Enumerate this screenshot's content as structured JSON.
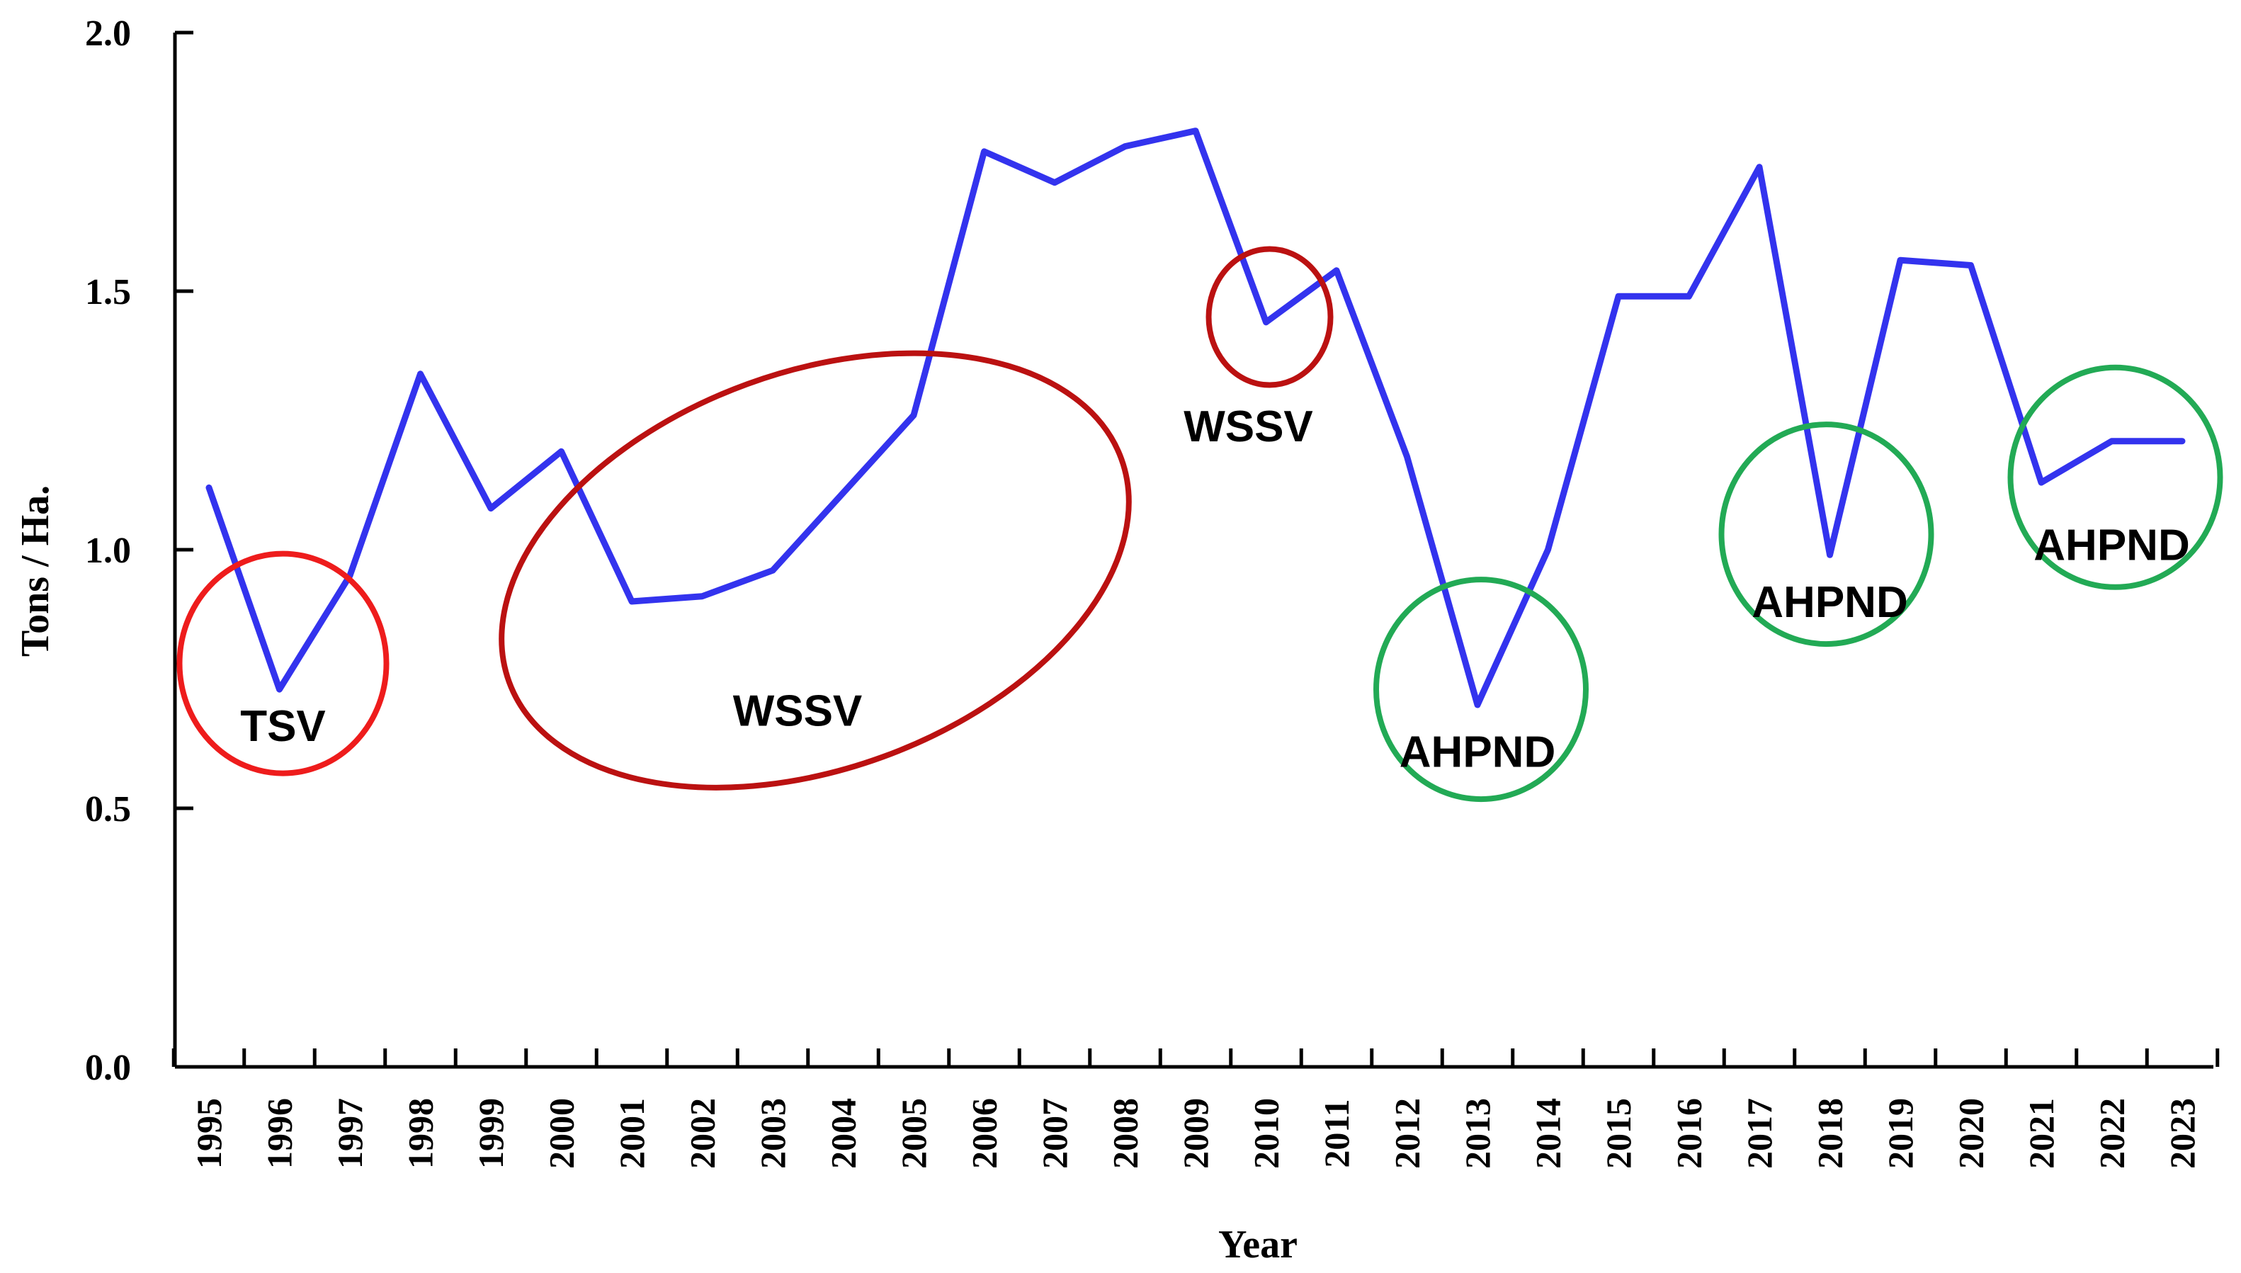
{
  "chart_data": {
    "type": "line",
    "xlabel": "Year",
    "ylabel": "Tons / Ha.",
    "ylim": [
      0,
      2.0
    ],
    "yticks": [
      "0.0",
      "0.5",
      "1.0",
      "1.5",
      "2.0"
    ],
    "grid": false,
    "legend": "none",
    "line_color": "#3333ee",
    "x": [
      "1995",
      "1996",
      "1997",
      "1998",
      "1999",
      "2000",
      "2001",
      "2002",
      "2003",
      "2004",
      "2005",
      "2006",
      "2007",
      "2008",
      "2009",
      "2010",
      "2011",
      "2012",
      "2013",
      "2014",
      "2015",
      "2016",
      "2017",
      "2018",
      "2019",
      "2020",
      "2021",
      "2022",
      "2023"
    ],
    "series": [
      {
        "values": [
          1.12,
          0.73,
          0.95,
          1.34,
          1.08,
          1.19,
          0.9,
          0.91,
          0.96,
          1.11,
          1.26,
          1.77,
          1.71,
          1.78,
          1.81,
          1.44,
          1.54,
          1.18,
          0.7,
          1.0,
          1.49,
          1.49,
          1.74,
          0.99,
          1.56,
          1.55,
          1.13,
          1.21,
          1.21
        ]
      }
    ],
    "annotations": [
      {
        "label": "TSV",
        "color": "#ee1c1c",
        "center": [
          "1996",
          0.78
        ],
        "anchor_year": "1996",
        "anchor_y": 0.66
      },
      {
        "label": "WSSV",
        "color": "#bb1111",
        "center": [
          "2003",
          0.96
        ],
        "anchor_year": "2003",
        "anchor_y": 0.69
      },
      {
        "label": "WSSV",
        "color": "#bb1111",
        "center": [
          "2010",
          1.45
        ],
        "anchor_year": "2010",
        "anchor_y": 1.24
      },
      {
        "label": "AHPND",
        "color": "#22aa55",
        "center": [
          "2013",
          0.73
        ],
        "anchor_year": "2013",
        "anchor_y": 0.61
      },
      {
        "label": "AHPND",
        "color": "#22aa55",
        "center": [
          "2018",
          1.03
        ],
        "anchor_year": "2018",
        "anchor_y": 0.9
      },
      {
        "label": "AHPND",
        "color": "#22aa55",
        "center": [
          "2022",
          1.14
        ],
        "anchor_year": "2022",
        "anchor_y": 1.01
      }
    ]
  }
}
